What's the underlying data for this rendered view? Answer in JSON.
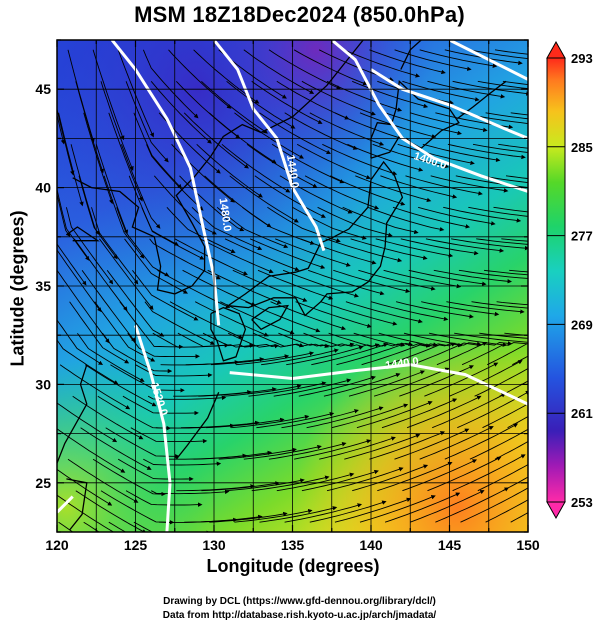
{
  "title": "MSM 18Z18Dec2024 (850.0hPa)",
  "xlabel": "Longitude (degrees)",
  "ylabel": "Latitude (degrees)",
  "credits": {
    "line1": "Drawing by DCL (https://www.gfd-dennou.org/library/dcl/)",
    "line2": "Data from http://database.rish.kyoto-u.ac.jp/arch/jmadata/"
  },
  "map": {
    "lon_range": [
      120,
      150
    ],
    "lat_range": [
      22.5,
      47.5
    ],
    "lon_ticks": [
      "120",
      "125",
      "130",
      "135",
      "140",
      "145",
      "150"
    ],
    "lat_ticks": [
      "25",
      "30",
      "35",
      "40",
      "45"
    ],
    "grid": true,
    "field": "temperature",
    "overlay": "streamlines",
    "contour_color": "#ffffff"
  },
  "colorbar": {
    "min": 253,
    "max": 293,
    "labels": [
      "293",
      "285",
      "277",
      "269",
      "261",
      "253"
    ],
    "colors": [
      "#ff2a1a",
      "#ff8a1f",
      "#f7c21c",
      "#d9ec1e",
      "#66d82a",
      "#1ed36a",
      "#19cfbf",
      "#23a2e8",
      "#2060e0",
      "#2424b8",
      "#6d1bb0",
      "#c31ab5",
      "#ff2aa8"
    ]
  },
  "contours": [
    {
      "label": "1440.0",
      "lon": 134.8,
      "lat": 40.8,
      "angle": 82
    },
    {
      "label": "1480.0",
      "lon": 130.5,
      "lat": 38.6,
      "angle": 82
    },
    {
      "label": "1400.0",
      "lon": 143.7,
      "lat": 41.2,
      "angle": 18
    },
    {
      "label": "1440.0",
      "lon": 142.0,
      "lat": 30.9,
      "angle": -8
    },
    {
      "label": "1520.0",
      "lon": 126.3,
      "lat": 29.2,
      "angle": 72
    }
  ]
}
